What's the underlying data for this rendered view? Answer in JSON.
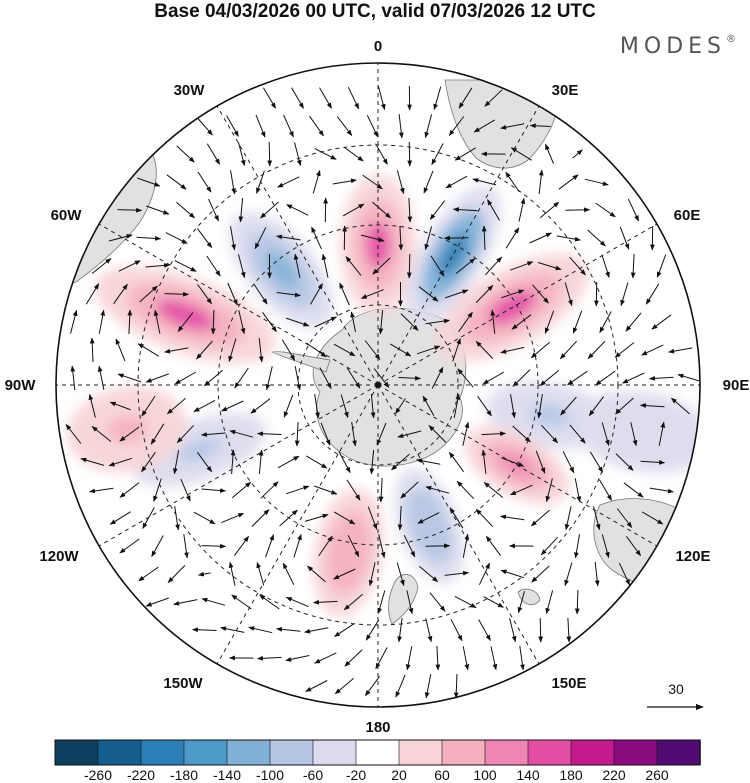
{
  "title": "Base 04/03/2026 00 UTC, valid 07/03/2026 12 UTC",
  "brand": "MODES",
  "brand_mark": "®",
  "longitude_labels": [
    "0",
    "30E",
    "60E",
    "90E",
    "120E",
    "150E",
    "180",
    "150W",
    "120W",
    "90W",
    "60W",
    "30W"
  ],
  "reference_vector": {
    "label": "30",
    "magnitude": 30
  },
  "colorbar": {
    "ticks": [
      "-260",
      "-220",
      "-180",
      "-140",
      "-100",
      "-60",
      "-20",
      "20",
      "60",
      "100",
      "140",
      "180",
      "220",
      "260"
    ],
    "colors": [
      "#0d3f5e",
      "#145f8f",
      "#2a7fb6",
      "#4d9bcb",
      "#7fb1d8",
      "#b5c6e4",
      "#dcdcee",
      "#ffffff",
      "#f8d4d6",
      "#f5b0bd",
      "#f086b2",
      "#e44ea5",
      "#c41a8e",
      "#8c0c80",
      "#520b72"
    ]
  },
  "colors": {
    "land": "#e1e1e1",
    "coast": "#777777",
    "grid": "#222222"
  },
  "anomaly_features": [
    {
      "kind": "positive",
      "value": 150,
      "lon": -70
    },
    {
      "kind": "negative",
      "value": -130,
      "lon": -40
    },
    {
      "kind": "positive",
      "value": 140,
      "lon": 0
    },
    {
      "kind": "negative",
      "value": -200,
      "lon": 30
    },
    {
      "kind": "positive",
      "value": 150,
      "lon": 60
    },
    {
      "kind": "negative",
      "value": -80,
      "lon": 100
    },
    {
      "kind": "positive",
      "value": 120,
      "lon": 120
    },
    {
      "kind": "negative",
      "value": -100,
      "lon": 160
    },
    {
      "kind": "positive",
      "value": 80,
      "lon": -170
    },
    {
      "kind": "negative",
      "value": -80,
      "lon": -110
    },
    {
      "kind": "positive",
      "value": 60,
      "lon": -100
    },
    {
      "kind": "negative",
      "value": -60,
      "lon": 100
    }
  ]
}
